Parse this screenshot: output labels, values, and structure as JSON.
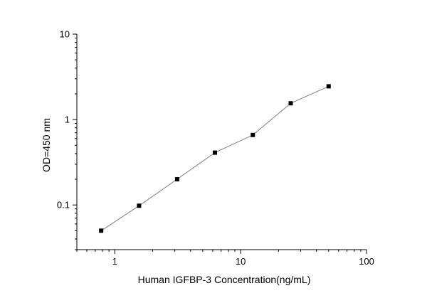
{
  "chart_data": {
    "type": "line",
    "xlabel": "Human IGFBP-3 Concentration(ng/mL)",
    "ylabel": "OD=450 nm",
    "xscale": "log",
    "yscale": "log",
    "xlim": [
      0.5,
      100
    ],
    "ylim": [
      0.03,
      10
    ],
    "x_ticks": [
      1,
      10,
      100
    ],
    "x_tick_labels": [
      "1",
      "10",
      "100"
    ],
    "y_ticks": [
      0.1,
      1,
      10
    ],
    "y_tick_labels": [
      "0.1",
      "1",
      "10"
    ],
    "grid": false,
    "legend": "none",
    "marker": "square",
    "line_color": "#808080",
    "marker_color": "#000000",
    "series": [
      {
        "x": [
          0.78,
          1.56,
          3.13,
          6.25,
          12.5,
          25,
          50
        ],
        "y": [
          0.05,
          0.098,
          0.2,
          0.41,
          0.66,
          1.55,
          2.45
        ]
      }
    ]
  }
}
